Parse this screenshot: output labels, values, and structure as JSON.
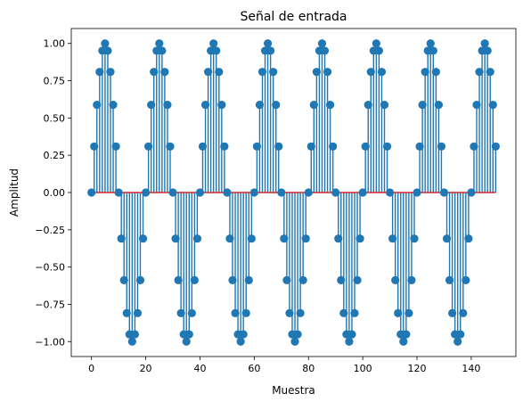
{
  "chart_data": {
    "type": "stem",
    "title": "Señal de entrada",
    "xlabel": "Muestra",
    "ylabel": "Amplitud",
    "xlim": [
      -7.45,
      156.45
    ],
    "ylim": [
      -1.1,
      1.1
    ],
    "x_ticks": [
      0,
      20,
      40,
      60,
      80,
      100,
      120,
      140
    ],
    "x_tick_labels": [
      "0",
      "20",
      "40",
      "60",
      "80",
      "100",
      "120",
      "140"
    ],
    "y_ticks": [
      -1.0,
      -0.75,
      -0.5,
      -0.25,
      0.0,
      0.25,
      0.5,
      0.75,
      1.0
    ],
    "y_tick_labels": [
      "−1.00",
      "−0.75",
      "−0.50",
      "−0.25",
      "0.00",
      "0.25",
      "0.50",
      "0.75",
      "1.00"
    ],
    "grid": false,
    "baseline": 0.0,
    "colors": {
      "stem": "#1f77b4",
      "baseline": "#d62728"
    },
    "series": [
      {
        "x": [
          0,
          1,
          2,
          3,
          4,
          5,
          6,
          7,
          8,
          9,
          10,
          11,
          12,
          13,
          14,
          15,
          16,
          17,
          18,
          19,
          20,
          21,
          22,
          23,
          24,
          25,
          26,
          27,
          28,
          29,
          30,
          31,
          32,
          33,
          34,
          35,
          36,
          37,
          38,
          39,
          40,
          41,
          42,
          43,
          44,
          45,
          46,
          47,
          48,
          49,
          50,
          51,
          52,
          53,
          54,
          55,
          56,
          57,
          58,
          59,
          60,
          61,
          62,
          63,
          64,
          65,
          66,
          67,
          68,
          69,
          70,
          71,
          72,
          73,
          74,
          75,
          76,
          77,
          78,
          79,
          80,
          81,
          82,
          83,
          84,
          85,
          86,
          87,
          88,
          89,
          90,
          91,
          92,
          93,
          94,
          95,
          96,
          97,
          98,
          99,
          100,
          101,
          102,
          103,
          104,
          105,
          106,
          107,
          108,
          109,
          110,
          111,
          112,
          113,
          114,
          115,
          116,
          117,
          118,
          119,
          120,
          121,
          122,
          123,
          124,
          125,
          126,
          127,
          128,
          129,
          130,
          131,
          132,
          133,
          134,
          135,
          136,
          137,
          138,
          139,
          140,
          141,
          142,
          143,
          144,
          145,
          146,
          147,
          148,
          149
        ],
        "values": [
          0.0,
          0.309,
          0.588,
          0.809,
          0.951,
          1.0,
          0.951,
          0.809,
          0.588,
          0.309,
          0.0,
          -0.309,
          -0.588,
          -0.809,
          -0.951,
          -1.0,
          -0.951,
          -0.809,
          -0.588,
          -0.309,
          0.0,
          0.309,
          0.588,
          0.809,
          0.951,
          1.0,
          0.951,
          0.809,
          0.588,
          0.309,
          0.0,
          -0.309,
          -0.588,
          -0.809,
          -0.951,
          -1.0,
          -0.951,
          -0.809,
          -0.588,
          -0.309,
          0.0,
          0.309,
          0.588,
          0.809,
          0.951,
          1.0,
          0.951,
          0.809,
          0.588,
          0.309,
          0.0,
          -0.309,
          -0.588,
          -0.809,
          -0.951,
          -1.0,
          -0.951,
          -0.809,
          -0.588,
          -0.309,
          0.0,
          0.309,
          0.588,
          0.809,
          0.951,
          1.0,
          0.951,
          0.809,
          0.588,
          0.309,
          0.0,
          -0.309,
          -0.588,
          -0.809,
          -0.951,
          -1.0,
          -0.951,
          -0.809,
          -0.588,
          -0.309,
          0.0,
          0.309,
          0.588,
          0.809,
          0.951,
          1.0,
          0.951,
          0.809,
          0.588,
          0.309,
          0.0,
          -0.309,
          -0.588,
          -0.809,
          -0.951,
          -1.0,
          -0.951,
          -0.809,
          -0.588,
          -0.309,
          0.0,
          0.309,
          0.588,
          0.809,
          0.951,
          1.0,
          0.951,
          0.809,
          0.588,
          0.309,
          0.0,
          -0.309,
          -0.588,
          -0.809,
          -0.951,
          -1.0,
          -0.951,
          -0.809,
          -0.588,
          -0.309,
          0.0,
          0.309,
          0.588,
          0.809,
          0.951,
          1.0,
          0.951,
          0.809,
          0.588,
          0.309,
          0.0,
          -0.309,
          -0.588,
          -0.809,
          -0.951,
          -1.0,
          -0.951,
          -0.809,
          -0.588,
          -0.309,
          0.0,
          0.309,
          0.588,
          0.809,
          0.951,
          1.0,
          0.951,
          0.809,
          0.588,
          0.309
        ]
      }
    ]
  }
}
